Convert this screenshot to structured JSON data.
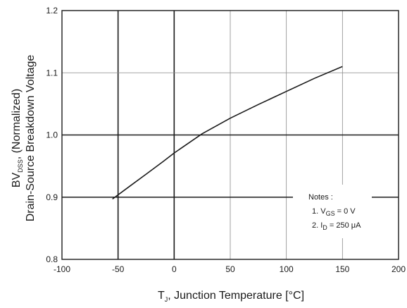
{
  "chart_data": {
    "type": "line",
    "xlabel": {
      "main": "T",
      "sub": "J",
      "rest": ", Junction Temperature [°C]"
    },
    "ylabel": {
      "line1_main": "BV",
      "line1_sub": "DSS",
      "line1_rest": ", (Normalized)",
      "line2": "Drain-Source Breakdown Voltage"
    },
    "xlim": [
      -100,
      200
    ],
    "ylim": [
      0.8,
      1.2
    ],
    "x_ticks": [
      -100,
      -50,
      0,
      50,
      100,
      150,
      200
    ],
    "y_ticks": [
      0.8,
      0.9,
      1.0,
      1.1,
      1.2
    ],
    "x_tick_labels": [
      "-100",
      "-50",
      "0",
      "50",
      "100",
      "150",
      "200"
    ],
    "y_tick_labels": [
      "0.8",
      "0.9",
      "1.0",
      "1.1",
      "1.2"
    ],
    "major_grid_x": [
      -50,
      0
    ],
    "major_grid_y": [
      0.9,
      1.0
    ],
    "grid": true,
    "series": [
      {
        "x": [
          -55,
          -40,
          -25,
          -10,
          0,
          25,
          50,
          75,
          100,
          125,
          150
        ],
        "y": [
          0.897,
          0.917,
          0.937,
          0.957,
          0.971,
          1.002,
          1.027,
          1.049,
          1.07,
          1.091,
          1.11
        ]
      }
    ]
  },
  "notes": {
    "title": "Notes :",
    "line1": {
      "prefix": "1. V",
      "sub": "GS",
      "suffix": " = 0 V"
    },
    "line2": {
      "prefix": "2. I",
      "sub": "D",
      "suffix": " = 250 μA"
    }
  }
}
